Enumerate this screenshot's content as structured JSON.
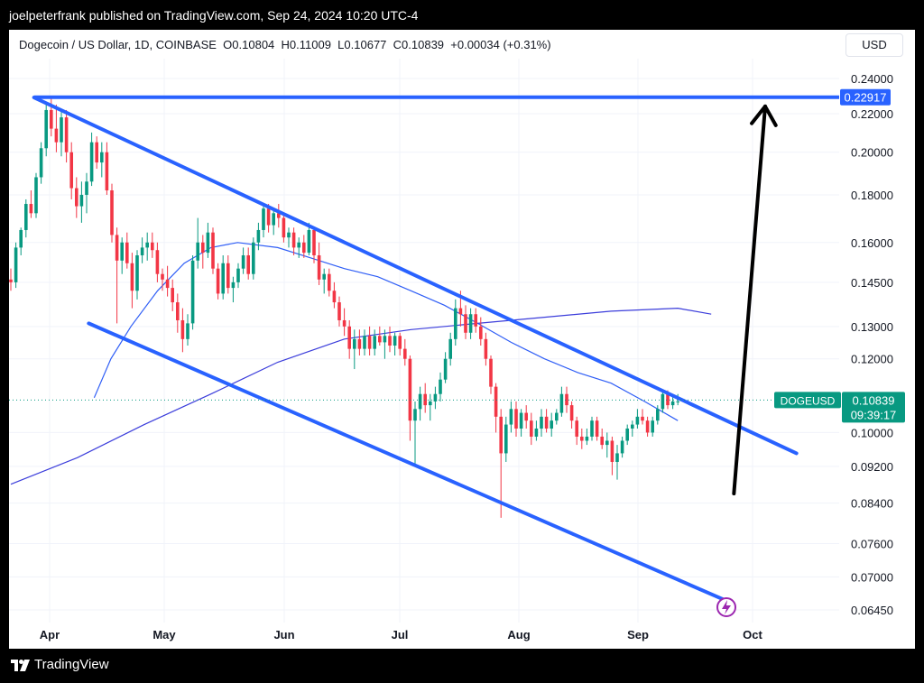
{
  "header": {
    "publisher_text": "joelpeterfrank published on TradingView.com, Sep 24, 2024 10:20 UTC-4"
  },
  "footer": {
    "brand": "TradingView"
  },
  "legend": {
    "symbol_text": "Dogecoin / US Dollar, 1D, COINBASE",
    "o_label": "O",
    "o_value": "0.10804",
    "h_label": "H",
    "h_value": "0.11009",
    "l_label": "L",
    "l_value": "0.10677",
    "c_label": "C",
    "c_value": "0.10839",
    "change": "+0.00034 (+0.31%)"
  },
  "currency_button": "USD",
  "price_tag": {
    "symbol": "DOGEUSD",
    "price": "0.10839",
    "countdown": "09:39:17"
  },
  "target_tag": "0.22917",
  "colors": {
    "up": "#089981",
    "down": "#f23645",
    "channel": "#2962ff",
    "ma_fast": "#2f5ef6",
    "ma_slow": "#3b3ddb",
    "arrow": "#000000"
  },
  "chart_data": {
    "type": "candlestick",
    "y_scale": "log",
    "y_ticks": [
      "0.24000",
      "0.22000",
      "0.20000",
      "0.18000",
      "0.16000",
      "0.14500",
      "0.13000",
      "0.12000",
      "0.10000",
      "0.09200",
      "0.08400",
      "0.07600",
      "0.07000",
      "0.06450"
    ],
    "x_ticks": [
      "Apr",
      "May",
      "Jun",
      "Jul",
      "Aug",
      "Sep",
      "Oct"
    ],
    "candles": [
      [
        0.146,
        0.15,
        0.142,
        0.145
      ],
      [
        0.145,
        0.16,
        0.143,
        0.158
      ],
      [
        0.158,
        0.166,
        0.155,
        0.165
      ],
      [
        0.165,
        0.178,
        0.162,
        0.176
      ],
      [
        0.176,
        0.182,
        0.17,
        0.172
      ],
      [
        0.172,
        0.19,
        0.17,
        0.188
      ],
      [
        0.188,
        0.205,
        0.185,
        0.202
      ],
      [
        0.202,
        0.226,
        0.198,
        0.222
      ],
      [
        0.222,
        0.229,
        0.208,
        0.212
      ],
      [
        0.212,
        0.225,
        0.2,
        0.205
      ],
      [
        0.205,
        0.222,
        0.198,
        0.218
      ],
      [
        0.218,
        0.222,
        0.195,
        0.2
      ],
      [
        0.2,
        0.205,
        0.178,
        0.183
      ],
      [
        0.183,
        0.188,
        0.17,
        0.175
      ],
      [
        0.175,
        0.186,
        0.168,
        0.18
      ],
      [
        0.18,
        0.19,
        0.172,
        0.186
      ],
      [
        0.186,
        0.21,
        0.184,
        0.205
      ],
      [
        0.205,
        0.208,
        0.192,
        0.195
      ],
      [
        0.195,
        0.205,
        0.188,
        0.2
      ],
      [
        0.2,
        0.205,
        0.18,
        0.182
      ],
      [
        0.182,
        0.185,
        0.16,
        0.163
      ],
      [
        0.163,
        0.166,
        0.131,
        0.153
      ],
      [
        0.153,
        0.162,
        0.148,
        0.16
      ],
      [
        0.16,
        0.164,
        0.15,
        0.152
      ],
      [
        0.152,
        0.156,
        0.136,
        0.142
      ],
      [
        0.142,
        0.157,
        0.139,
        0.155
      ],
      [
        0.155,
        0.162,
        0.152,
        0.158
      ],
      [
        0.158,
        0.164,
        0.153,
        0.16
      ],
      [
        0.16,
        0.164,
        0.154,
        0.157
      ],
      [
        0.157,
        0.16,
        0.145,
        0.148
      ],
      [
        0.148,
        0.15,
        0.142,
        0.146
      ],
      [
        0.146,
        0.151,
        0.14,
        0.143
      ],
      [
        0.143,
        0.146,
        0.135,
        0.138
      ],
      [
        0.138,
        0.141,
        0.128,
        0.132
      ],
      [
        0.132,
        0.136,
        0.122,
        0.126
      ],
      [
        0.126,
        0.134,
        0.124,
        0.131
      ],
      [
        0.131,
        0.155,
        0.129,
        0.153
      ],
      [
        0.153,
        0.17,
        0.15,
        0.16
      ],
      [
        0.16,
        0.163,
        0.15,
        0.156
      ],
      [
        0.156,
        0.168,
        0.154,
        0.164
      ],
      [
        0.164,
        0.166,
        0.148,
        0.15
      ],
      [
        0.15,
        0.152,
        0.139,
        0.141
      ],
      [
        0.141,
        0.155,
        0.139,
        0.152
      ],
      [
        0.152,
        0.155,
        0.141,
        0.143
      ],
      [
        0.143,
        0.147,
        0.138,
        0.145
      ],
      [
        0.145,
        0.152,
        0.143,
        0.15
      ],
      [
        0.15,
        0.158,
        0.148,
        0.155
      ],
      [
        0.155,
        0.158,
        0.146,
        0.148
      ],
      [
        0.148,
        0.162,
        0.146,
        0.16
      ],
      [
        0.16,
        0.168,
        0.157,
        0.165
      ],
      [
        0.165,
        0.176,
        0.162,
        0.174
      ],
      [
        0.174,
        0.176,
        0.164,
        0.167
      ],
      [
        0.167,
        0.174,
        0.163,
        0.172
      ],
      [
        0.172,
        0.176,
        0.166,
        0.17
      ],
      [
        0.17,
        0.172,
        0.16,
        0.162
      ],
      [
        0.162,
        0.166,
        0.158,
        0.164
      ],
      [
        0.164,
        0.166,
        0.155,
        0.158
      ],
      [
        0.158,
        0.162,
        0.154,
        0.16
      ],
      [
        0.16,
        0.163,
        0.154,
        0.156
      ],
      [
        0.156,
        0.168,
        0.155,
        0.165
      ],
      [
        0.165,
        0.166,
        0.152,
        0.155
      ],
      [
        0.155,
        0.16,
        0.144,
        0.146
      ],
      [
        0.146,
        0.15,
        0.141,
        0.148
      ],
      [
        0.148,
        0.15,
        0.14,
        0.142
      ],
      [
        0.142,
        0.145,
        0.136,
        0.138
      ],
      [
        0.138,
        0.14,
        0.13,
        0.132
      ],
      [
        0.132,
        0.136,
        0.127,
        0.13
      ],
      [
        0.13,
        0.132,
        0.12,
        0.123
      ],
      [
        0.123,
        0.129,
        0.117,
        0.126
      ],
      [
        0.126,
        0.129,
        0.121,
        0.123
      ],
      [
        0.123,
        0.129,
        0.121,
        0.127
      ],
      [
        0.127,
        0.13,
        0.121,
        0.123
      ],
      [
        0.123,
        0.129,
        0.121,
        0.127
      ],
      [
        0.127,
        0.13,
        0.124,
        0.125
      ],
      [
        0.125,
        0.129,
        0.12,
        0.127
      ],
      [
        0.127,
        0.13,
        0.122,
        0.124
      ],
      [
        0.124,
        0.128,
        0.121,
        0.127
      ],
      [
        0.127,
        0.128,
        0.121,
        0.123
      ],
      [
        0.123,
        0.126,
        0.118,
        0.12
      ],
      [
        0.12,
        0.121,
        0.098,
        0.103
      ],
      [
        0.103,
        0.108,
        0.092,
        0.106
      ],
      [
        0.106,
        0.112,
        0.103,
        0.11
      ],
      [
        0.11,
        0.113,
        0.105,
        0.107
      ],
      [
        0.107,
        0.11,
        0.103,
        0.108
      ],
      [
        0.108,
        0.112,
        0.106,
        0.11
      ],
      [
        0.11,
        0.116,
        0.108,
        0.114
      ],
      [
        0.114,
        0.122,
        0.113,
        0.12
      ],
      [
        0.12,
        0.128,
        0.118,
        0.126
      ],
      [
        0.126,
        0.139,
        0.124,
        0.136
      ],
      [
        0.136,
        0.142,
        0.13,
        0.134
      ],
      [
        0.134,
        0.137,
        0.126,
        0.128
      ],
      [
        0.128,
        0.136,
        0.126,
        0.134
      ],
      [
        0.134,
        0.136,
        0.128,
        0.13
      ],
      [
        0.13,
        0.133,
        0.124,
        0.126
      ],
      [
        0.126,
        0.128,
        0.118,
        0.12
      ],
      [
        0.12,
        0.121,
        0.11,
        0.112
      ],
      [
        0.112,
        0.113,
        0.1,
        0.104
      ],
      [
        0.104,
        0.106,
        0.081,
        0.095
      ],
      [
        0.095,
        0.104,
        0.093,
        0.102
      ],
      [
        0.102,
        0.108,
        0.1,
        0.106
      ],
      [
        0.106,
        0.108,
        0.099,
        0.101
      ],
      [
        0.101,
        0.106,
        0.099,
        0.105
      ],
      [
        0.105,
        0.107,
        0.101,
        0.103
      ],
      [
        0.103,
        0.105,
        0.097,
        0.099
      ],
      [
        0.099,
        0.103,
        0.098,
        0.101
      ],
      [
        0.101,
        0.106,
        0.099,
        0.104
      ],
      [
        0.104,
        0.106,
        0.1,
        0.101
      ],
      [
        0.101,
        0.105,
        0.099,
        0.103
      ],
      [
        0.103,
        0.106,
        0.102,
        0.105
      ],
      [
        0.105,
        0.112,
        0.104,
        0.11
      ],
      [
        0.11,
        0.112,
        0.105,
        0.107
      ],
      [
        0.107,
        0.108,
        0.101,
        0.103
      ],
      [
        0.103,
        0.104,
        0.097,
        0.099
      ],
      [
        0.099,
        0.101,
        0.096,
        0.098
      ],
      [
        0.098,
        0.101,
        0.097,
        0.099
      ],
      [
        0.099,
        0.104,
        0.098,
        0.103
      ],
      [
        0.103,
        0.104,
        0.098,
        0.099
      ],
      [
        0.099,
        0.101,
        0.096,
        0.097
      ],
      [
        0.097,
        0.1,
        0.094,
        0.098
      ],
      [
        0.098,
        0.099,
        0.09,
        0.093
      ],
      [
        0.093,
        0.097,
        0.089,
        0.095
      ],
      [
        0.095,
        0.099,
        0.094,
        0.098
      ],
      [
        0.098,
        0.102,
        0.097,
        0.101
      ],
      [
        0.101,
        0.103,
        0.099,
        0.102
      ],
      [
        0.102,
        0.106,
        0.101,
        0.104
      ],
      [
        0.104,
        0.106,
        0.102,
        0.103
      ],
      [
        0.103,
        0.104,
        0.099,
        0.1
      ],
      [
        0.1,
        0.104,
        0.099,
        0.103
      ],
      [
        0.103,
        0.107,
        0.102,
        0.106
      ],
      [
        0.106,
        0.111,
        0.105,
        0.11
      ],
      [
        0.11,
        0.111,
        0.106,
        0.107
      ],
      [
        0.107,
        0.11,
        0.106,
        0.108
      ],
      [
        0.108,
        0.11,
        0.107,
        0.108
      ]
    ],
    "ma_fast": [
      [
        0.125,
        0.109
      ],
      [
        0.15,
        0.12
      ],
      [
        0.18,
        0.13
      ],
      [
        0.22,
        0.142
      ],
      [
        0.26,
        0.152
      ],
      [
        0.3,
        0.158
      ],
      [
        0.34,
        0.16
      ],
      [
        0.4,
        0.158
      ],
      [
        0.45,
        0.154
      ],
      [
        0.5,
        0.15
      ],
      [
        0.55,
        0.147
      ],
      [
        0.6,
        0.142
      ],
      [
        0.65,
        0.137
      ],
      [
        0.7,
        0.131
      ],
      [
        0.75,
        0.125
      ],
      [
        0.8,
        0.12
      ],
      [
        0.85,
        0.116
      ],
      [
        0.9,
        0.113
      ],
      [
        0.95,
        0.108
      ],
      [
        1.0,
        0.103
      ]
    ],
    "ma_slow": [
      [
        0.0,
        0.088
      ],
      [
        0.1,
        0.094
      ],
      [
        0.2,
        0.102
      ],
      [
        0.3,
        0.11
      ],
      [
        0.4,
        0.119
      ],
      [
        0.5,
        0.126
      ],
      [
        0.6,
        0.129
      ],
      [
        0.7,
        0.131
      ],
      [
        0.8,
        0.133
      ],
      [
        0.9,
        0.135
      ],
      [
        1.0,
        0.136
      ],
      [
        1.05,
        0.134
      ]
    ],
    "channel": {
      "upper": [
        [
          "2024-03-28",
          0.229
        ],
        [
          "2024-10-09",
          0.095
        ]
      ],
      "lower": [
        [
          "2024-04-11",
          0.131
        ],
        [
          "2024-09-21",
          0.066
        ]
      ],
      "horizontal": 0.22917
    },
    "projection_arrow": {
      "from": [
        "2024-09-23",
        0.086
      ],
      "to": [
        "2024-10-01",
        0.224
      ]
    }
  }
}
